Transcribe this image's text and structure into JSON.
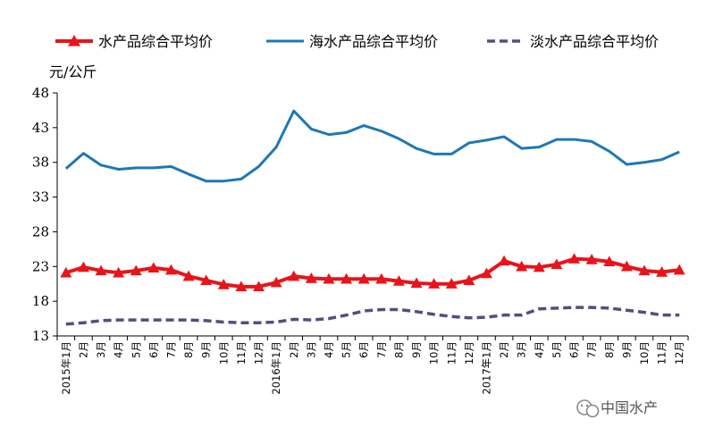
{
  "chart_data": {
    "type": "line",
    "ylabel": "元/公斤",
    "ylim": [
      13,
      48
    ],
    "y_ticks": [
      13,
      18,
      23,
      28,
      33,
      38,
      43,
      48
    ],
    "x": [
      "2015年1月",
      "2月",
      "3月",
      "4月",
      "5月",
      "6月",
      "7月",
      "8月",
      "9月",
      "10月",
      "11月",
      "12月",
      "2016年1月",
      "2月",
      "3月",
      "4月",
      "5月",
      "6月",
      "7月",
      "8月",
      "9月",
      "10月",
      "11月",
      "12月",
      "2017年1月",
      "2月",
      "3月",
      "4月",
      "5月",
      "6月",
      "7月",
      "8月",
      "9月",
      "10月",
      "11月",
      "12月"
    ],
    "grid": false,
    "legend_position": "top",
    "series": [
      {
        "name": "水产品综合平均价",
        "color": "#e8141a",
        "style": "solid-triangle",
        "values": [
          22.1,
          22.9,
          22.4,
          22.1,
          22.4,
          22.8,
          22.5,
          21.6,
          21.0,
          20.4,
          20.1,
          20.1,
          20.7,
          21.6,
          21.3,
          21.2,
          21.2,
          21.2,
          21.2,
          20.9,
          20.6,
          20.5,
          20.5,
          21.0,
          22.0,
          23.8,
          23.0,
          22.9,
          23.3,
          24.1,
          24.0,
          23.7,
          23.0,
          22.4,
          22.2,
          22.5
        ]
      },
      {
        "name": "海水产品综合平均价",
        "color": "#1f77b4",
        "style": "solid",
        "values": [
          37.1,
          39.3,
          37.6,
          37.0,
          37.2,
          37.2,
          37.4,
          36.3,
          35.3,
          35.3,
          35.6,
          37.4,
          40.2,
          45.4,
          42.8,
          42.0,
          42.3,
          43.3,
          42.5,
          41.4,
          40.0,
          39.2,
          39.2,
          40.8,
          41.2,
          41.7,
          40.0,
          40.2,
          41.3,
          41.3,
          41.0,
          39.6,
          37.7,
          38.0,
          38.4,
          39.5
        ]
      },
      {
        "name": "淡水产品综合平均价",
        "color": "#5b4a7e",
        "style": "dashed",
        "values": [
          14.7,
          14.9,
          15.2,
          15.3,
          15.3,
          15.3,
          15.3,
          15.3,
          15.2,
          15.0,
          14.9,
          14.9,
          15.0,
          15.4,
          15.3,
          15.5,
          16.0,
          16.6,
          16.8,
          16.8,
          16.5,
          16.1,
          15.8,
          15.6,
          15.7,
          16.0,
          16.0,
          16.9,
          17.0,
          17.1,
          17.1,
          17.0,
          16.7,
          16.4,
          16.0,
          16.0
        ]
      }
    ]
  },
  "watermark": {
    "text": "中国水产",
    "icon": "wechat-icon"
  }
}
